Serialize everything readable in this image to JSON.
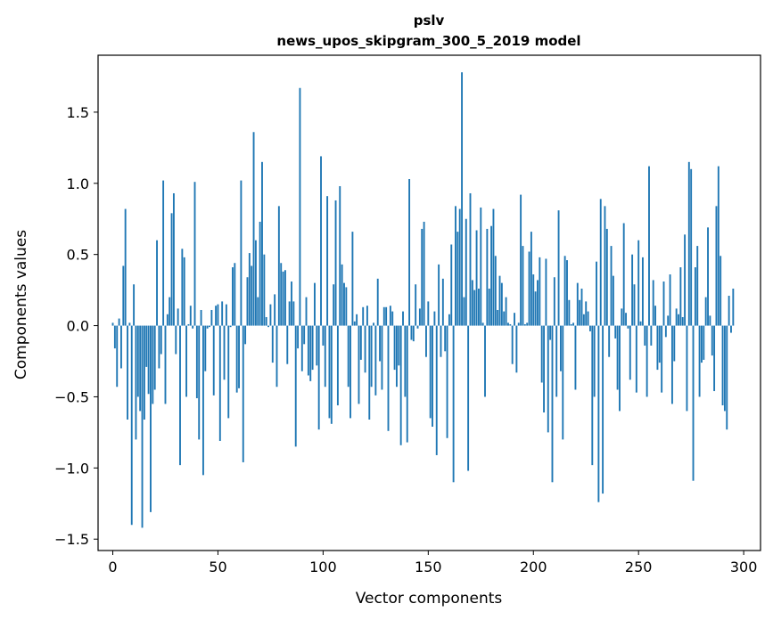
{
  "chart_data": {
    "type": "bar",
    "title_line1": "pslv",
    "title_line2": "news_upos_skipgram_300_5_2019 model",
    "xlabel": "Vector components",
    "ylabel": "Components values",
    "xlim": [
      -7,
      308
    ],
    "ylim": [
      -1.58,
      1.9
    ],
    "xticks": [
      0,
      50,
      100,
      150,
      200,
      250,
      300
    ],
    "yticks": [
      -1.5,
      -1.0,
      -0.5,
      0.0,
      0.5,
      1.0,
      1.5
    ],
    "ytick_labels": [
      "−1.5",
      "−1.0",
      "−0.5",
      "0.0",
      "0.5",
      "1.0",
      "1.5"
    ],
    "bar_color": "#1f77b4",
    "values": [
      0.02,
      -0.16,
      -0.43,
      0.05,
      -0.3,
      0.42,
      0.82,
      -0.66,
      0.02,
      -1.4,
      0.29,
      -0.8,
      -0.5,
      -0.6,
      -1.42,
      -0.66,
      -0.29,
      -0.48,
      -1.31,
      -0.55,
      -0.45,
      0.6,
      -0.3,
      -0.2,
      1.02,
      -0.55,
      0.08,
      0.2,
      0.79,
      0.93,
      -0.2,
      0.12,
      -0.98,
      0.54,
      0.48,
      -0.5,
      0.01,
      0.14,
      -0.02,
      1.01,
      -0.51,
      -0.8,
      0.11,
      -1.05,
      -0.32,
      -0.02,
      -0.01,
      0.11,
      -0.49,
      0.14,
      0.15,
      -0.81,
      0.17,
      -0.38,
      0.15,
      -0.65,
      -0.01,
      0.41,
      0.44,
      -0.47,
      -0.44,
      1.02,
      -0.96,
      -0.13,
      0.34,
      0.51,
      0.42,
      1.36,
      0.6,
      0.2,
      0.73,
      1.15,
      0.5,
      0.06,
      -0.01,
      0.15,
      -0.26,
      0.22,
      -0.43,
      0.84,
      0.44,
      0.38,
      0.39,
      -0.27,
      0.17,
      0.31,
      0.17,
      -0.85,
      -0.16,
      1.67,
      -0.32,
      -0.13,
      0.2,
      -0.35,
      -0.39,
      -0.31,
      0.3,
      -0.28,
      -0.73,
      1.19,
      -0.14,
      -0.43,
      0.91,
      -0.65,
      -0.69,
      0.29,
      0.88,
      -0.56,
      0.98,
      0.43,
      0.3,
      0.27,
      -0.43,
      -0.65,
      0.66,
      0.03,
      0.08,
      -0.55,
      -0.24,
      0.13,
      -0.33,
      0.14,
      -0.66,
      -0.43,
      0.02,
      -0.49,
      0.33,
      -0.25,
      -0.45,
      0.13,
      0.13,
      -0.74,
      0.14,
      0.1,
      -0.31,
      -0.43,
      -0.28,
      -0.84,
      0.1,
      -0.5,
      -0.82,
      1.03,
      -0.1,
      -0.11,
      0.29,
      -0.02,
      0.12,
      0.68,
      0.73,
      -0.22,
      0.17,
      -0.65,
      -0.71,
      0.1,
      -0.91,
      0.43,
      -0.22,
      0.33,
      -0.18,
      -0.79,
      0.08,
      0.57,
      -1.1,
      0.84,
      0.66,
      0.82,
      1.78,
      0.2,
      0.75,
      -1.02,
      0.93,
      0.32,
      0.25,
      0.67,
      0.26,
      0.83,
      0.02,
      -0.5,
      0.68,
      0.26,
      0.7,
      0.82,
      0.49,
      0.11,
      0.35,
      0.3,
      0.1,
      0.2,
      0.02,
      0.01,
      -0.27,
      0.09,
      -0.33,
      0.02,
      0.92,
      0.56,
      0.01,
      0.02,
      0.52,
      0.66,
      0.36,
      0.24,
      0.32,
      0.48,
      -0.4,
      -0.61,
      0.47,
      -0.75,
      -0.1,
      -1.1,
      0.34,
      -0.5,
      0.81,
      -0.32,
      -0.8,
      0.49,
      0.46,
      0.18,
      0.01,
      0.02,
      -0.45,
      0.3,
      0.18,
      0.26,
      0.08,
      0.17,
      0.1,
      -0.04,
      -0.98,
      -0.5,
      0.45,
      -1.24,
      0.89,
      -1.18,
      0.84,
      0.68,
      -0.22,
      0.56,
      0.35,
      -0.09,
      -0.45,
      -0.6,
      0.12,
      0.72,
      0.09,
      -0.02,
      -0.38,
      0.5,
      0.29,
      -0.47,
      0.6,
      0.03,
      0.48,
      -0.14,
      -0.5,
      1.12,
      -0.14,
      0.32,
      0.14,
      -0.31,
      -0.26,
      -0.47,
      0.31,
      -0.08,
      0.07,
      0.36,
      -0.55,
      -0.25,
      0.12,
      0.08,
      0.41,
      0.06,
      0.64,
      -0.6,
      1.15,
      1.1,
      -1.09,
      0.41,
      0.56,
      -0.5,
      -0.26,
      -0.24,
      0.2,
      0.69,
      0.07,
      -0.21,
      -0.46,
      0.84,
      1.12,
      0.49,
      -0.56,
      -0.6,
      -0.73,
      0.21,
      -0.05,
      0.26
    ]
  }
}
